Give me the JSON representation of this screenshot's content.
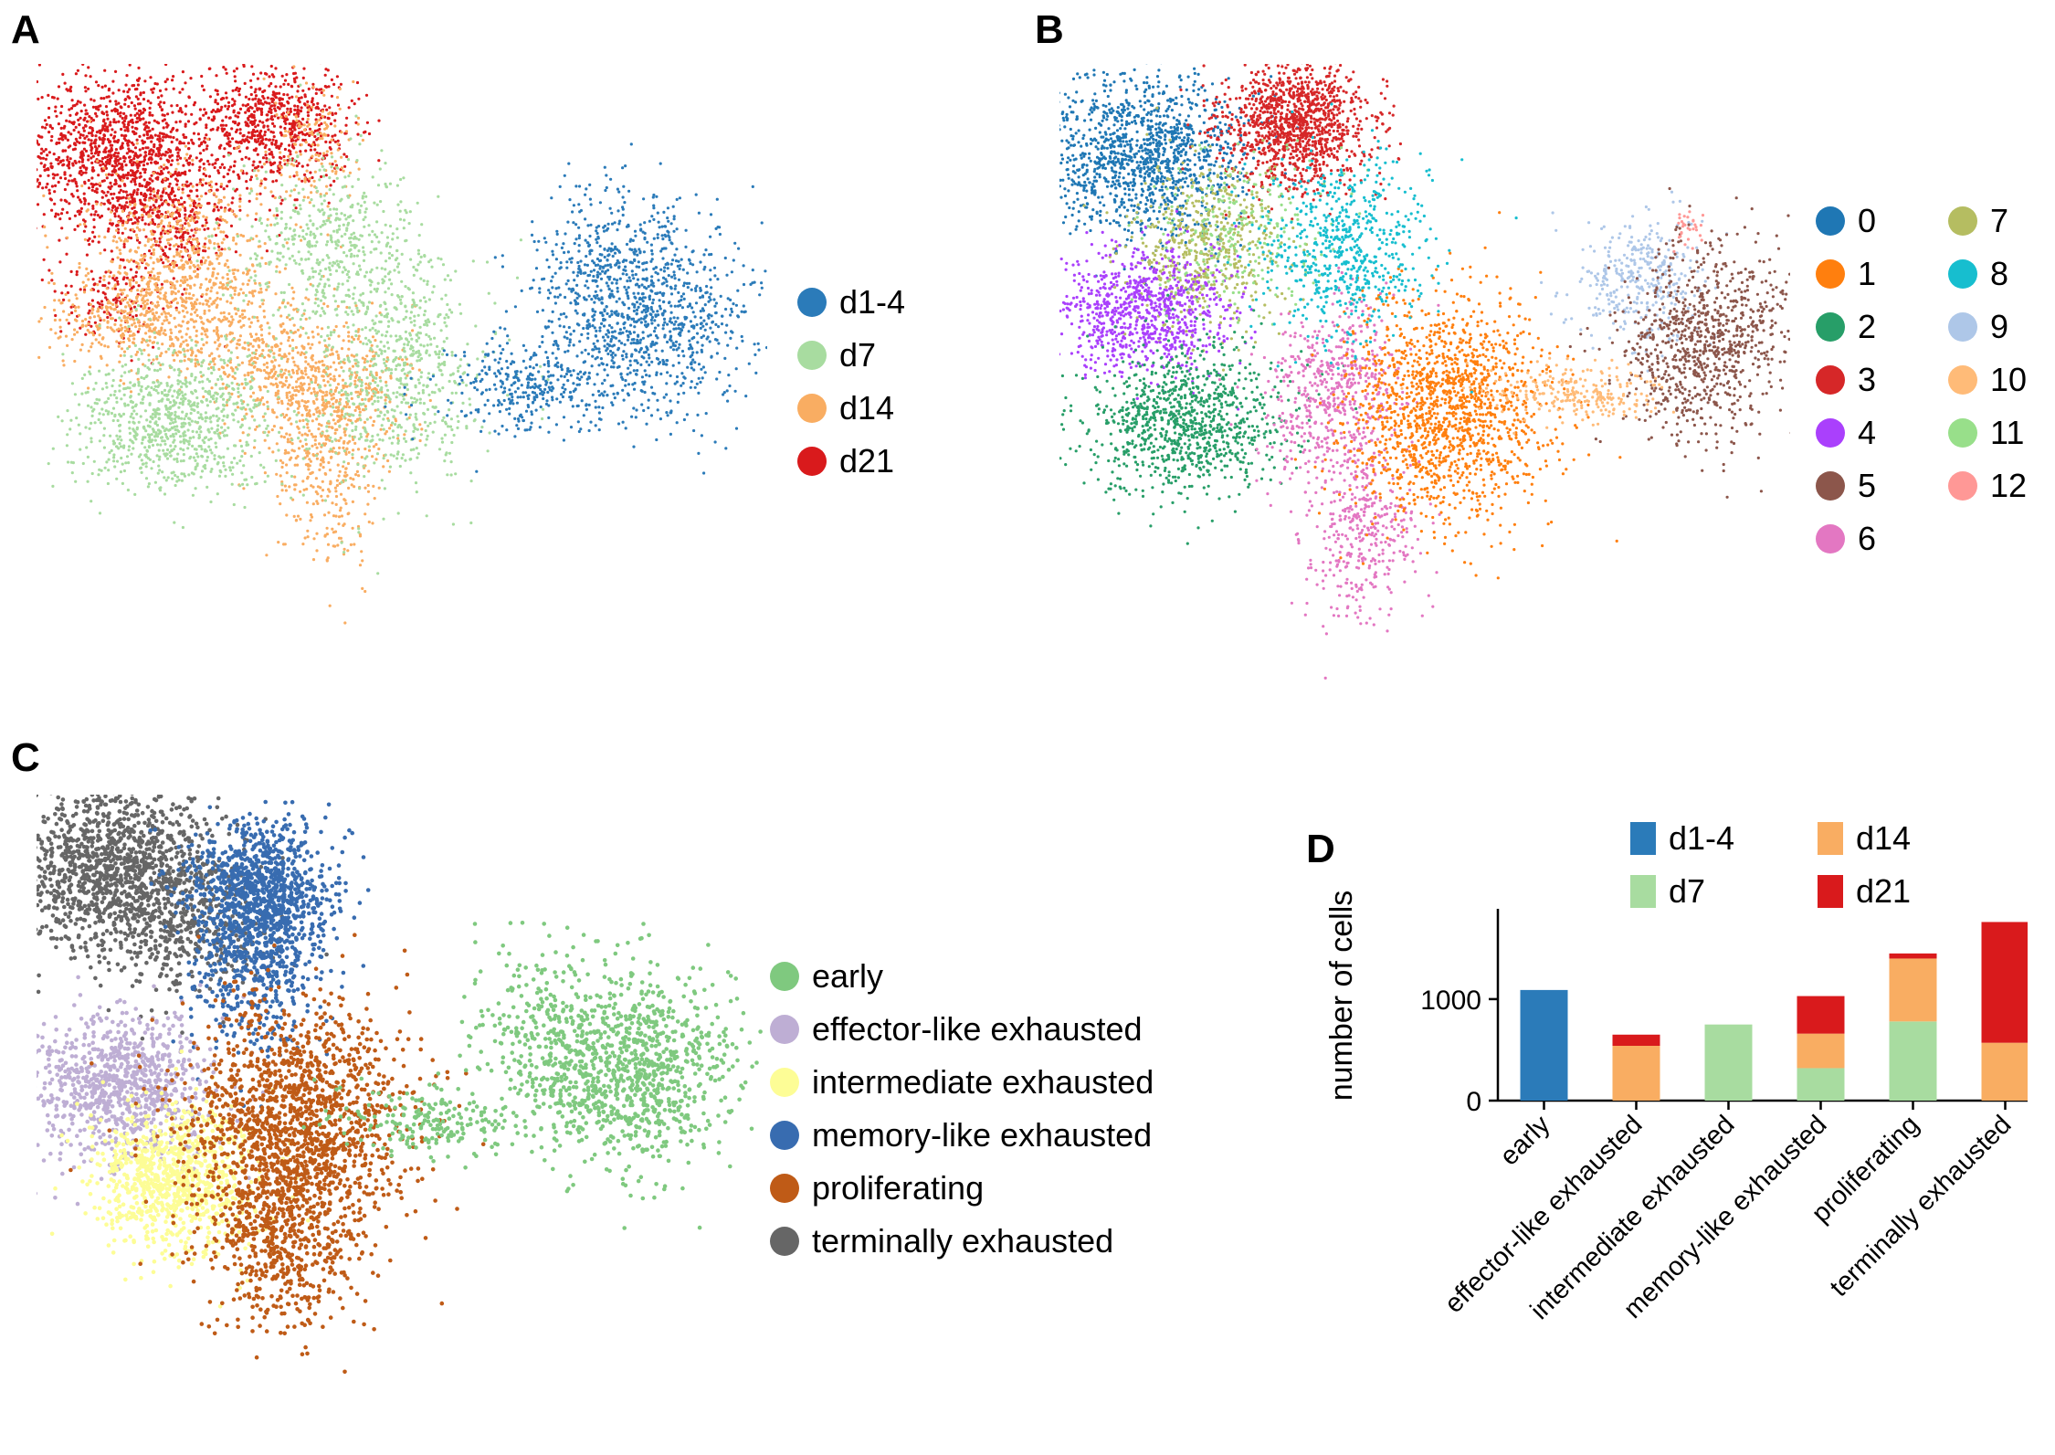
{
  "panels": {
    "a": {
      "letter": "A"
    },
    "b": {
      "letter": "B"
    },
    "c": {
      "letter": "C"
    },
    "d": {
      "letter": "D"
    }
  },
  "colors": {
    "d1_4": "#2b7bb9",
    "d7": "#a8dca0",
    "d14": "#f9ad62",
    "d21": "#d91a1c",
    "c0": "#1f77b4",
    "c1": "#ff7f0e",
    "c2": "#279e68",
    "c3": "#d62728",
    "c4": "#aa40fc",
    "c5": "#8c564b",
    "c6": "#e377c2",
    "c7": "#b5bd61",
    "c8": "#17becf",
    "c9": "#aec7e8",
    "c10": "#ffbb78",
    "c11": "#98df8a",
    "c12": "#ff9896",
    "early": "#7fc97f",
    "effector": "#beaed4",
    "intermediate": "#fdfd96",
    "memory": "#386cb0",
    "prolif": "#bf5b17",
    "terminal": "#666666"
  },
  "legend_a": [
    "d1-4",
    "d7",
    "d14",
    "d21"
  ],
  "legend_b": [
    "0",
    "1",
    "2",
    "3",
    "4",
    "5",
    "6",
    "7",
    "8",
    "9",
    "10",
    "11",
    "12"
  ],
  "legend_c": [
    "early",
    "effector-like exhausted",
    "intermediate exhausted",
    "memory-like exhausted",
    "proliferating",
    "terminally exhausted"
  ],
  "chart_data": {
    "type": "bar",
    "stacked": true,
    "ylabel": "number of cells",
    "yticks": [
      0,
      1000
    ],
    "ylim": [
      0,
      1800
    ],
    "categories": [
      "early",
      "effector-like exhausted",
      "intermediate exhausted",
      "memory-like exhausted",
      "proliferating",
      "terminally exhausted"
    ],
    "series": [
      {
        "name": "d1-4",
        "values": [
          1090,
          0,
          0,
          0,
          0,
          0
        ]
      },
      {
        "name": "d7",
        "values": [
          0,
          0,
          750,
          320,
          780,
          0
        ]
      },
      {
        "name": "d14",
        "values": [
          0,
          540,
          0,
          340,
          620,
          570
        ]
      },
      {
        "name": "d21",
        "values": [
          0,
          110,
          0,
          370,
          50,
          1190
        ]
      }
    ],
    "legend_location": "top"
  }
}
